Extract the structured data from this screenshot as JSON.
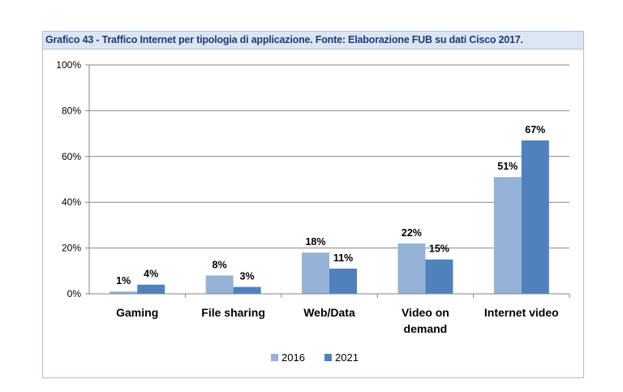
{
  "title": "Grafico 43 - Traffico Internet per tipologia di applicazione. Fonte: Elaborazione FUB su dati Cisco 2017.",
  "chart_data": {
    "type": "bar",
    "categories": [
      [
        "Gaming"
      ],
      [
        "File sharing"
      ],
      [
        "Web/Data"
      ],
      [
        "Video on",
        "demand"
      ],
      [
        "Internet video"
      ]
    ],
    "series": [
      {
        "name": "2016",
        "values": [
          1,
          8,
          18,
          22,
          51
        ],
        "labels": [
          "1%",
          "8%",
          "18%",
          "22%",
          "51%"
        ],
        "color": "#95b3d7"
      },
      {
        "name": "2021",
        "values": [
          4,
          3,
          11,
          15,
          67
        ],
        "labels": [
          "4%",
          "3%",
          "11%",
          "15%",
          "67%"
        ],
        "color": "#4f81bd"
      }
    ],
    "ylim": [
      0,
      100
    ],
    "yticks": [
      0,
      20,
      40,
      60,
      80,
      100
    ],
    "ytick_labels": [
      "0%",
      "20%",
      "40%",
      "60%",
      "80%",
      "100%"
    ],
    "grid": true,
    "legend": "bottom"
  }
}
